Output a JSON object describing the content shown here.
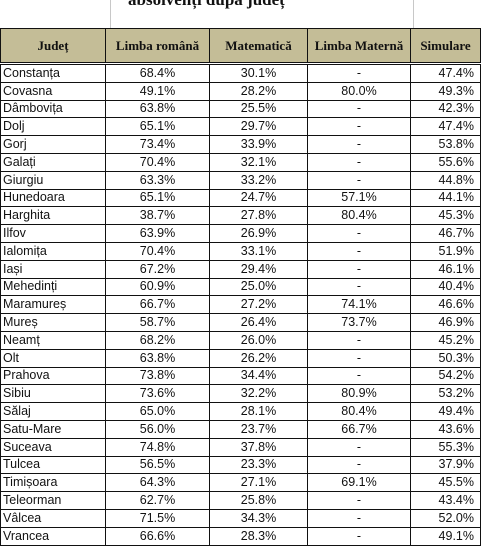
{
  "title": "absolvenți după județ",
  "headers": {
    "county": "Județ",
    "romanian": "Limba română",
    "math": "Matematică",
    "mother_tongue": "Limba Maternă",
    "simulation": "Simulare"
  },
  "rows": [
    {
      "county": "Constanța",
      "romanian": "68.4%",
      "math": "30.1%",
      "mother_tongue": "-",
      "simulation": "47.4%"
    },
    {
      "county": "Covasna",
      "romanian": "49.1%",
      "math": "28.2%",
      "mother_tongue": "80.0%",
      "simulation": "49.3%"
    },
    {
      "county": "Dâmbovița",
      "romanian": "63.8%",
      "math": "25.5%",
      "mother_tongue": "-",
      "simulation": "42.3%"
    },
    {
      "county": "Dolj",
      "romanian": "65.1%",
      "math": "29.7%",
      "mother_tongue": "-",
      "simulation": "47.4%"
    },
    {
      "county": "Gorj",
      "romanian": "73.4%",
      "math": "33.9%",
      "mother_tongue": "-",
      "simulation": "53.8%"
    },
    {
      "county": "Galați",
      "romanian": "70.4%",
      "math": "32.1%",
      "mother_tongue": "-",
      "simulation": "55.6%"
    },
    {
      "county": "Giurgiu",
      "romanian": "63.3%",
      "math": "33.2%",
      "mother_tongue": "-",
      "simulation": "44.8%"
    },
    {
      "county": "Hunedoara",
      "romanian": "65.1%",
      "math": "24.7%",
      "mother_tongue": "57.1%",
      "simulation": "44.1%"
    },
    {
      "county": "Harghita",
      "romanian": "38.7%",
      "math": "27.8%",
      "mother_tongue": "80.4%",
      "simulation": "45.3%"
    },
    {
      "county": "Ilfov",
      "romanian": "63.9%",
      "math": "26.9%",
      "mother_tongue": "-",
      "simulation": "46.7%"
    },
    {
      "county": "Ialomița",
      "romanian": "70.4%",
      "math": "33.1%",
      "mother_tongue": "-",
      "simulation": "51.9%"
    },
    {
      "county": "Iași",
      "romanian": "67.2%",
      "math": "29.4%",
      "mother_tongue": "-",
      "simulation": "46.1%"
    },
    {
      "county": "Mehedinți",
      "romanian": "60.9%",
      "math": "25.0%",
      "mother_tongue": "-",
      "simulation": "40.4%"
    },
    {
      "county": "Maramureș",
      "romanian": "66.7%",
      "math": "27.2%",
      "mother_tongue": "74.1%",
      "simulation": "46.6%"
    },
    {
      "county": "Mureș",
      "romanian": "58.7%",
      "math": "26.4%",
      "mother_tongue": "73.7%",
      "simulation": "46.9%"
    },
    {
      "county": "Neamț",
      "romanian": "68.2%",
      "math": "26.0%",
      "mother_tongue": "-",
      "simulation": "45.2%"
    },
    {
      "county": "Olt",
      "romanian": "63.8%",
      "math": "26.2%",
      "mother_tongue": "-",
      "simulation": "50.3%"
    },
    {
      "county": "Prahova",
      "romanian": "73.8%",
      "math": "34.4%",
      "mother_tongue": "-",
      "simulation": "54.2%"
    },
    {
      "county": "Sibiu",
      "romanian": "73.6%",
      "math": "32.2%",
      "mother_tongue": "80.9%",
      "simulation": "53.2%"
    },
    {
      "county": "Sălaj",
      "romanian": "65.0%",
      "math": "28.1%",
      "mother_tongue": "80.4%",
      "simulation": "49.4%"
    },
    {
      "county": "Satu-Mare",
      "romanian": "56.0%",
      "math": "23.7%",
      "mother_tongue": "66.7%",
      "simulation": "43.6%"
    },
    {
      "county": "Suceava",
      "romanian": "74.8%",
      "math": "37.8%",
      "mother_tongue": "-",
      "simulation": "55.3%"
    },
    {
      "county": "Tulcea",
      "romanian": "56.5%",
      "math": "23.3%",
      "mother_tongue": "-",
      "simulation": "37.9%"
    },
    {
      "county": "Timișoara",
      "romanian": "64.3%",
      "math": "27.1%",
      "mother_tongue": "69.1%",
      "simulation": "45.5%"
    },
    {
      "county": "Teleorman",
      "romanian": "62.7%",
      "math": "25.8%",
      "mother_tongue": "-",
      "simulation": "43.4%"
    },
    {
      "county": "Vâlcea",
      "romanian": "71.5%",
      "math": "34.3%",
      "mother_tongue": "-",
      "simulation": "52.0%"
    },
    {
      "county": "Vrancea",
      "romanian": "66.6%",
      "math": "28.3%",
      "mother_tongue": "-",
      "simulation": "49.1%"
    }
  ]
}
